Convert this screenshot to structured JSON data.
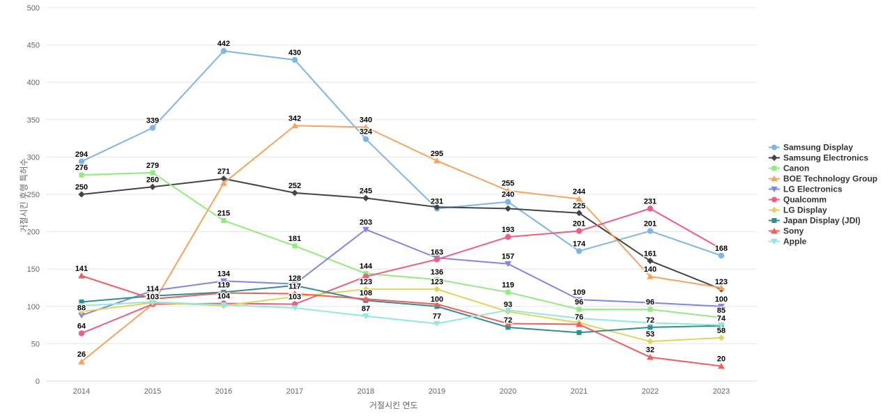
{
  "chart_data": {
    "type": "line",
    "title": "",
    "xlabel": "거절시킨 연도",
    "ylabel": "거절시킨 후행 특허수",
    "categories": [
      "2014",
      "2015",
      "2016",
      "2017",
      "2018",
      "2019",
      "2020",
      "2021",
      "2022",
      "2023"
    ],
    "ylim": [
      0,
      500
    ],
    "y_ticks": [
      0,
      50,
      100,
      150,
      200,
      250,
      300,
      350,
      400,
      450,
      500
    ],
    "grid": "horizontal",
    "legend_position": "right",
    "series": [
      {
        "name": "Samsung Display",
        "color": "#7cb5ec",
        "marker": "circle",
        "values": [
          294,
          339,
          442,
          430,
          324,
          231,
          240,
          174,
          201,
          168
        ],
        "labels": [
          294,
          339,
          442,
          430,
          324,
          231,
          240,
          174,
          201,
          168
        ]
      },
      {
        "name": "Samsung Electronics",
        "color": "#434348",
        "marker": "diamond",
        "values": [
          250,
          260,
          271,
          252,
          245,
          233,
          231,
          225,
          161,
          123
        ],
        "labels": [
          250,
          260,
          271,
          252,
          245,
          null,
          null,
          225,
          161,
          123
        ]
      },
      {
        "name": "Canon",
        "color": "#90ed7d",
        "marker": "square",
        "values": [
          276,
          279,
          215,
          181,
          144,
          136,
          119,
          96,
          96,
          85
        ],
        "labels": [
          276,
          279,
          215,
          181,
          144,
          136,
          119,
          96,
          96,
          85
        ]
      },
      {
        "name": "BOE Technology Group",
        "color": "#f7a35c",
        "marker": "triangle",
        "values": [
          26,
          103,
          265,
          342,
          340,
          295,
          255,
          244,
          140,
          125
        ],
        "labels": [
          26,
          null,
          null,
          342,
          340,
          295,
          255,
          244,
          140,
          null
        ]
      },
      {
        "name": "LG Electronics",
        "color": "#8085e9",
        "marker": "triangle-down",
        "values": [
          88,
          121,
          134,
          130,
          203,
          165,
          157,
          109,
          105,
          100
        ],
        "labels": [
          88,
          null,
          134,
          null,
          203,
          null,
          157,
          109,
          null,
          100
        ]
      },
      {
        "name": "Qualcomm",
        "color": "#f15c80",
        "marker": "circle",
        "values": [
          64,
          103,
          104,
          103,
          140,
          163,
          193,
          201,
          231,
          177
        ],
        "labels": [
          64,
          103,
          104,
          103,
          null,
          163,
          193,
          201,
          231,
          null
        ]
      },
      {
        "name": "LG Display",
        "color": "#e4d354",
        "marker": "diamond",
        "values": [
          93,
          105,
          101,
          113,
          123,
          123,
          93,
          78,
          53,
          58
        ],
        "labels": [
          null,
          null,
          null,
          null,
          123,
          123,
          93,
          null,
          53,
          58
        ]
      },
      {
        "name": "Japan Display (JDI)",
        "color": "#2b908f",
        "marker": "square",
        "values": [
          106,
          114,
          119,
          128,
          108,
          100,
          72,
          65,
          72,
          74
        ],
        "labels": [
          null,
          114,
          119,
          128,
          108,
          100,
          72,
          null,
          72,
          74
        ]
      },
      {
        "name": "Sony",
        "color": "#f45b5b",
        "marker": "triangle",
        "values": [
          141,
          110,
          118,
          117,
          110,
          103,
          77,
          76,
          32,
          20
        ],
        "labels": [
          141,
          null,
          null,
          117,
          null,
          null,
          null,
          76,
          32,
          20
        ]
      },
      {
        "name": "Apple",
        "color": "#91e8e1",
        "marker": "triangle-down",
        "values": [
          101,
          106,
          102,
          98,
          87,
          77,
          95,
          84,
          78,
          75
        ],
        "labels": [
          null,
          null,
          null,
          null,
          87,
          77,
          null,
          null,
          null,
          null
        ]
      }
    ]
  },
  "colors": {
    "background": "#ffffff",
    "grid": "#e6e6e6",
    "axis_line": "#d0d7e2",
    "axis_text": "#666666",
    "data_label_text": "#000000",
    "legend_text": "#333333"
  }
}
